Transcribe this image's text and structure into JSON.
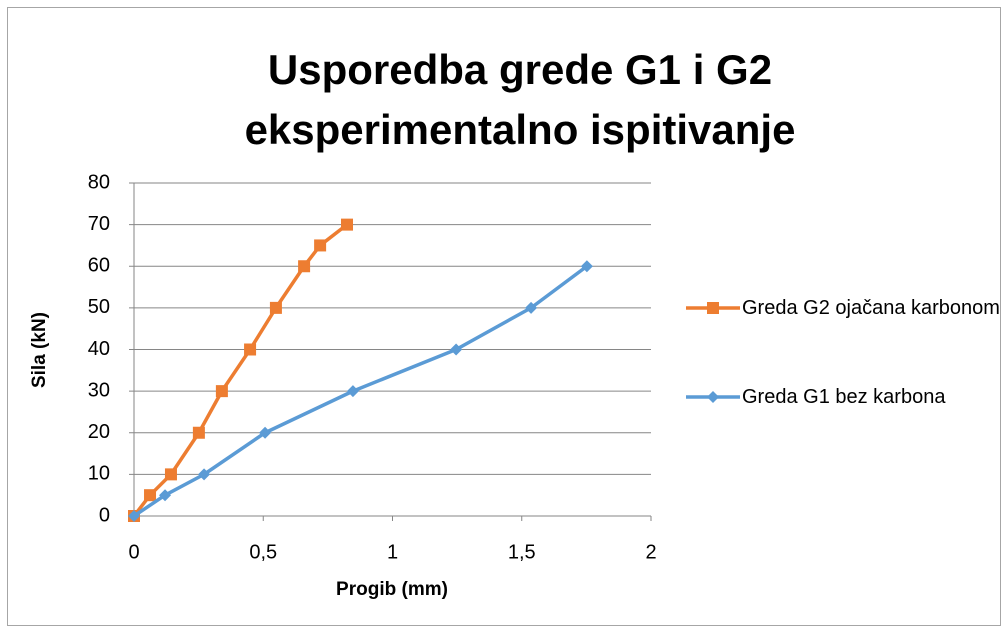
{
  "chart_data": {
    "type": "line",
    "title": "Usporedba grede G1 i G2\neksperimentalno ispitivanje",
    "x_label": "Progib (mm)",
    "y_label": "Sila (kN)",
    "series": [
      {
        "name": "Greda G2 ojačana karbonom",
        "color": "#ed7d31",
        "marker": "square",
        "x": [
          0,
          0.062,
          0.143,
          0.251,
          0.34,
          0.449,
          0.549,
          0.658,
          0.72,
          0.824
        ],
        "values": [
          0,
          5,
          10,
          20,
          30,
          40,
          50,
          60,
          65,
          70
        ]
      },
      {
        "name": "Greda G1 bez karbona",
        "color": "#5b9bd5",
        "marker": "diamond",
        "x": [
          0,
          0.12,
          0.271,
          0.507,
          0.847,
          1.246,
          1.536,
          1.752
        ],
        "values": [
          0,
          5,
          10,
          20,
          30,
          40,
          50,
          60
        ]
      }
    ],
    "xlim": [
      0,
      2
    ],
    "xticks": [
      0,
      {
        "value": 0.5,
        "label": "0,5"
      },
      1,
      {
        "value": 1.5,
        "label": "1,5"
      },
      2
    ],
    "ylim": [
      0,
      80
    ],
    "yticks": [
      0,
      10,
      20,
      30,
      40,
      50,
      60,
      70,
      80
    ],
    "grid": true,
    "legend": "right"
  }
}
